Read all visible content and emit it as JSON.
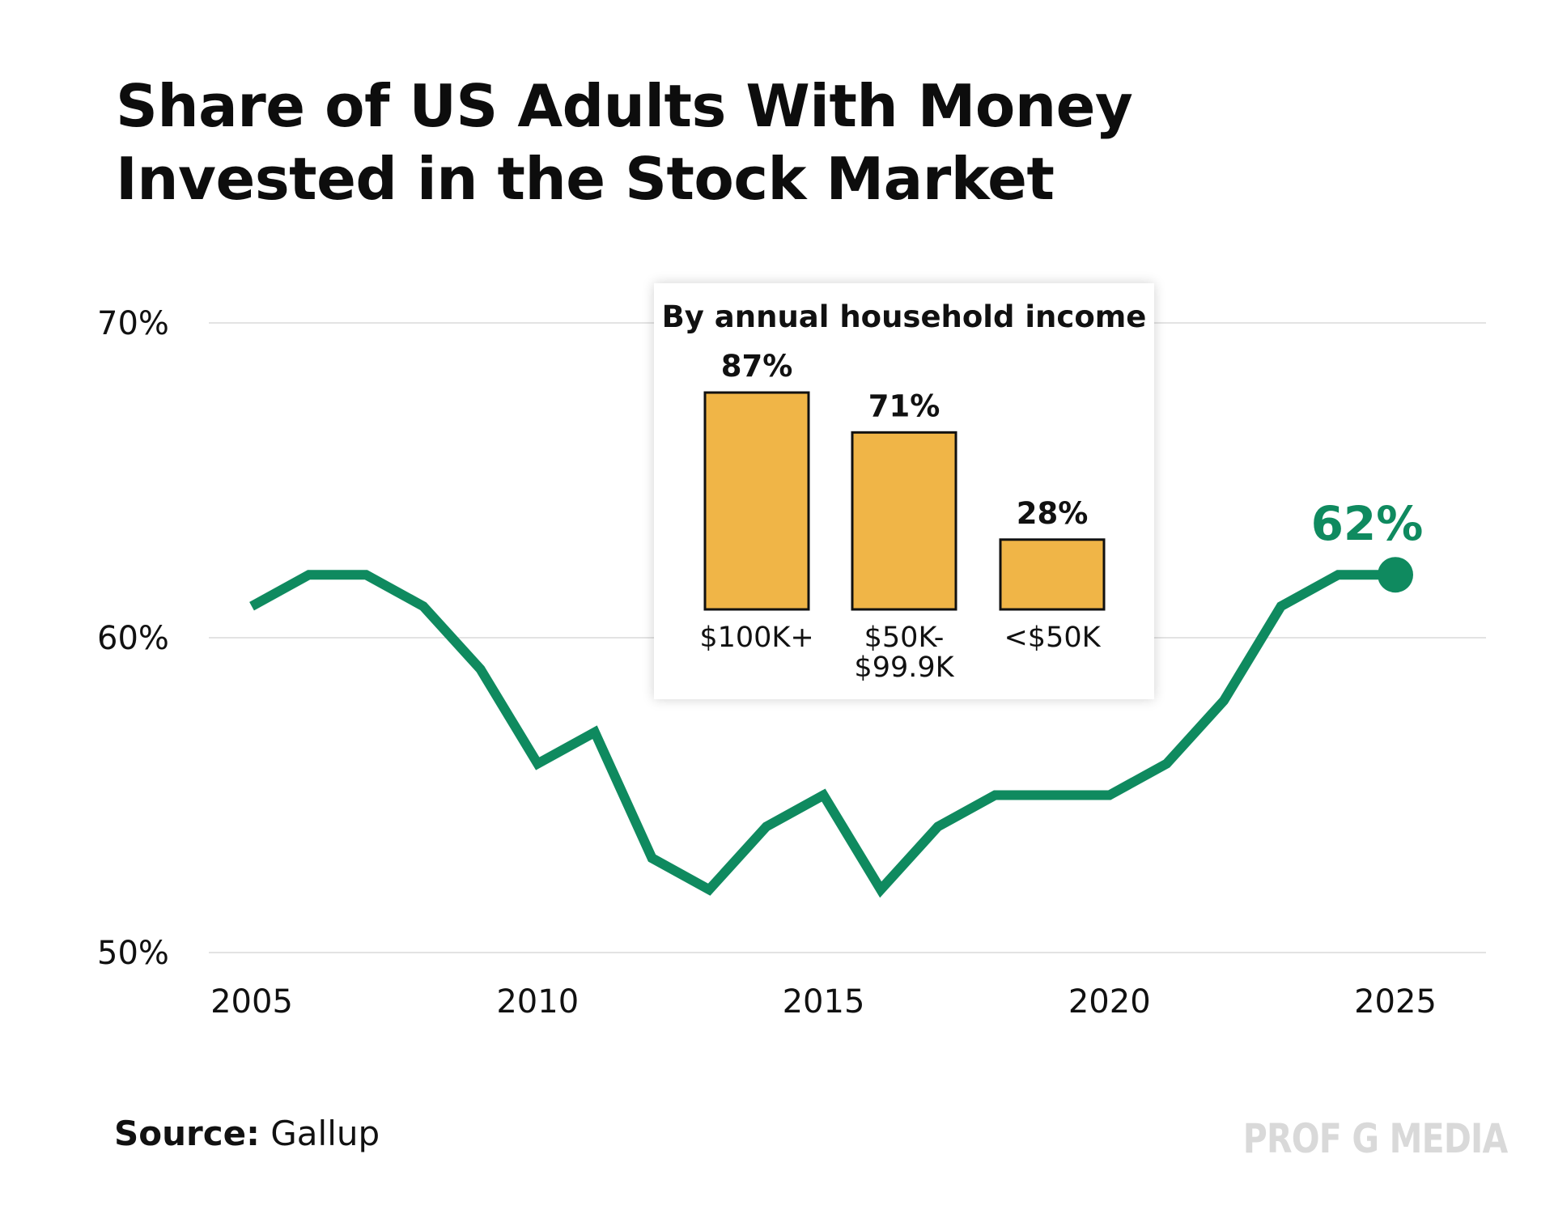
{
  "chart_data": {
    "type": "line",
    "title": "Share of US Adults With Money Invested in the Stock Market",
    "xlabel": "",
    "ylabel": "",
    "x": [
      2005,
      2006,
      2007,
      2008,
      2009,
      2010,
      2011,
      2012,
      2013,
      2014,
      2015,
      2016,
      2017,
      2018,
      2019,
      2020,
      2021,
      2022,
      2023,
      2024,
      2025
    ],
    "series": [
      {
        "name": "Share of US adults with money invested in the stock market",
        "values": [
          61,
          62,
          62,
          61,
          59,
          56,
          57,
          53,
          52,
          54,
          55,
          52,
          54,
          55,
          55,
          55,
          56,
          58,
          61,
          62,
          62
        ],
        "color": "#0f8a5f"
      }
    ],
    "xlim": [
      2005,
      2025
    ],
    "ylim": [
      50,
      70
    ],
    "x_ticks": [
      "2005",
      "2010",
      "2015",
      "2020",
      "2025"
    ],
    "y_ticks": [
      "50%",
      "60%",
      "70%"
    ],
    "grid": true,
    "end_label": "62%",
    "inset": {
      "type": "bar",
      "title": "By annual household income",
      "categories": [
        [
          "$100K+"
        ],
        [
          "$50K-",
          "$99.9K"
        ],
        [
          "<$50K"
        ]
      ],
      "values": [
        87,
        71,
        28
      ],
      "value_labels": [
        "87%",
        "71%",
        "28%"
      ],
      "ylim": [
        0,
        100
      ],
      "bar_color": "#f0b547"
    }
  },
  "source": {
    "label": "Source:",
    "text": "Gallup"
  },
  "watermark": "PROF G MEDIA"
}
